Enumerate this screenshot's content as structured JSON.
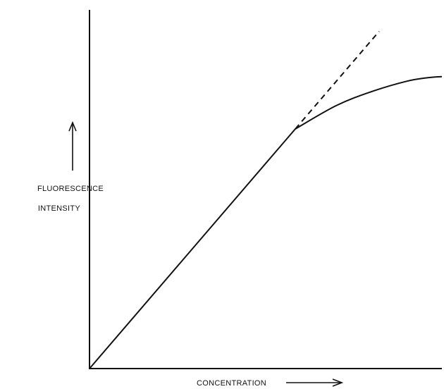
{
  "chart_data": {
    "type": "line",
    "xlabel": "CONCENTRATION",
    "ylabel_line1": "FLUORESCENCE",
    "ylabel_line2": "INTENSITY",
    "xlim": [
      0,
      1
    ],
    "ylim": [
      0,
      1
    ],
    "grid": false,
    "series": [
      {
        "style": "solid",
        "x": [
          0,
          0.584,
          0.7,
          0.8,
          0.9,
          0.96,
          1.0
        ],
        "y": [
          0,
          0.668,
          0.733,
          0.772,
          0.801,
          0.811,
          0.814
        ]
      },
      {
        "style": "dashed",
        "x": [
          0.584,
          0.822
        ],
        "y": [
          0.668,
          0.94
        ]
      }
    ]
  }
}
